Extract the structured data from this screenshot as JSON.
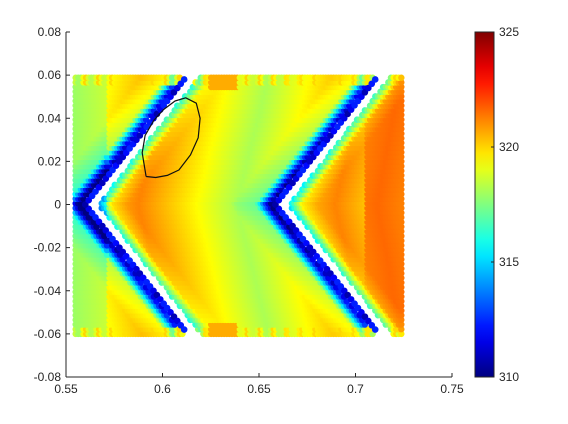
{
  "chart_data": {
    "type": "scatter",
    "title": "",
    "xlabel": "",
    "ylabel": "",
    "xlim": [
      0.55,
      0.75
    ],
    "ylim": [
      -0.08,
      0.08
    ],
    "x_ticks": [
      0.55,
      0.6,
      0.65,
      0.7,
      0.75
    ],
    "y_ticks": [
      -0.08,
      -0.06,
      -0.04,
      -0.02,
      0,
      0.02,
      0.04,
      0.06,
      0.08
    ],
    "x_tick_labels": [
      "0.55",
      "0.6",
      "0.65",
      "0.7",
      "0.75"
    ],
    "y_tick_labels": [
      "-0.08",
      "-0.06",
      "-0.04",
      "-0.02",
      "0",
      "0.02",
      "0.04",
      "0.06",
      "0.08"
    ],
    "colormap": "jet",
    "color_range": [
      310,
      325
    ],
    "colorbar_ticks": [
      310,
      315,
      320,
      325
    ],
    "colorbar_tick_labels": [
      "310",
      "315",
      "320",
      "325"
    ],
    "grid": false,
    "domain": {
      "x": [
        0.555,
        0.725
      ],
      "y": [
        -0.06,
        0.06
      ]
    },
    "chevron_slots": [
      {
        "apex": [
          0.5625,
          0.0
        ],
        "tips_x": 0.6155
      },
      {
        "apex": [
          0.661,
          0.0
        ],
        "tips_x": 0.7145
      }
    ],
    "annotation": {
      "shape": "hand-drawn loop",
      "outline": [
        [
          0.5915,
          0.013
        ],
        [
          0.5895,
          0.024
        ],
        [
          0.591,
          0.032
        ],
        [
          0.5955,
          0.039
        ],
        [
          0.6005,
          0.044
        ],
        [
          0.6065,
          0.048
        ],
        [
          0.612,
          0.0495
        ],
        [
          0.6175,
          0.047
        ],
        [
          0.6195,
          0.04
        ],
        [
          0.6185,
          0.031
        ],
        [
          0.6145,
          0.023
        ],
        [
          0.6085,
          0.016
        ],
        [
          0.6025,
          0.0135
        ],
        [
          0.5965,
          0.0125
        ],
        [
          0.5915,
          0.013
        ]
      ]
    }
  }
}
